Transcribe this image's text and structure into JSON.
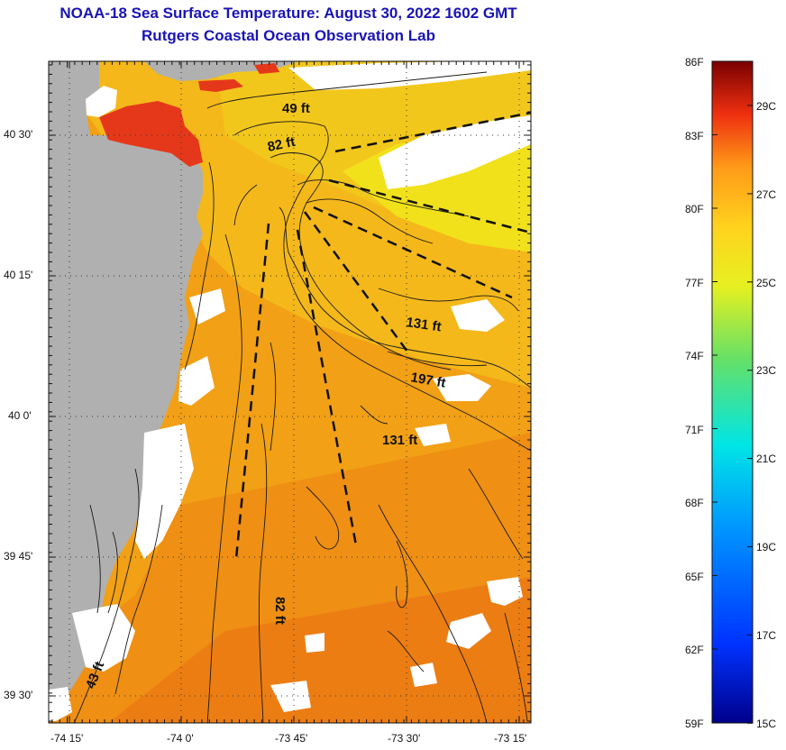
{
  "title": {
    "line1": "NOAA-18 Sea Surface Temperature:  August 30, 2022 1602 GMT",
    "line2": "Rutgers Coastal Ocean Observation Lab"
  },
  "map": {
    "lat_labels": [
      "40 30'",
      "40 15'",
      "40 0'",
      "39 45'",
      "39 30'"
    ],
    "lon_labels": [
      "-74 15'",
      "-74 0'",
      "-73 45'",
      "-73 30'",
      "-73 15'"
    ],
    "depth_labels": [
      "49 ft",
      "82 ft",
      "131 ft",
      "197 ft",
      "131 ft",
      "82 ft",
      "43 ft"
    ]
  },
  "colorbar": {
    "f_labels": [
      "86F",
      "83F",
      "80F",
      "77F",
      "74F",
      "71F",
      "68F",
      "65F",
      "62F",
      "59F"
    ],
    "c_labels": [
      "29C",
      "27C",
      "25C",
      "23C",
      "21C",
      "19C",
      "17C",
      "15C"
    ]
  },
  "colors": {
    "title": "#1a14b4",
    "land": "#b0b0b0",
    "ocean_warm": "#f7a316",
    "ocean_mid": "#f0c21c",
    "ocean_cool": "#f2ec1a",
    "hot": "#e5381a",
    "cloud": "#ffffff"
  }
}
